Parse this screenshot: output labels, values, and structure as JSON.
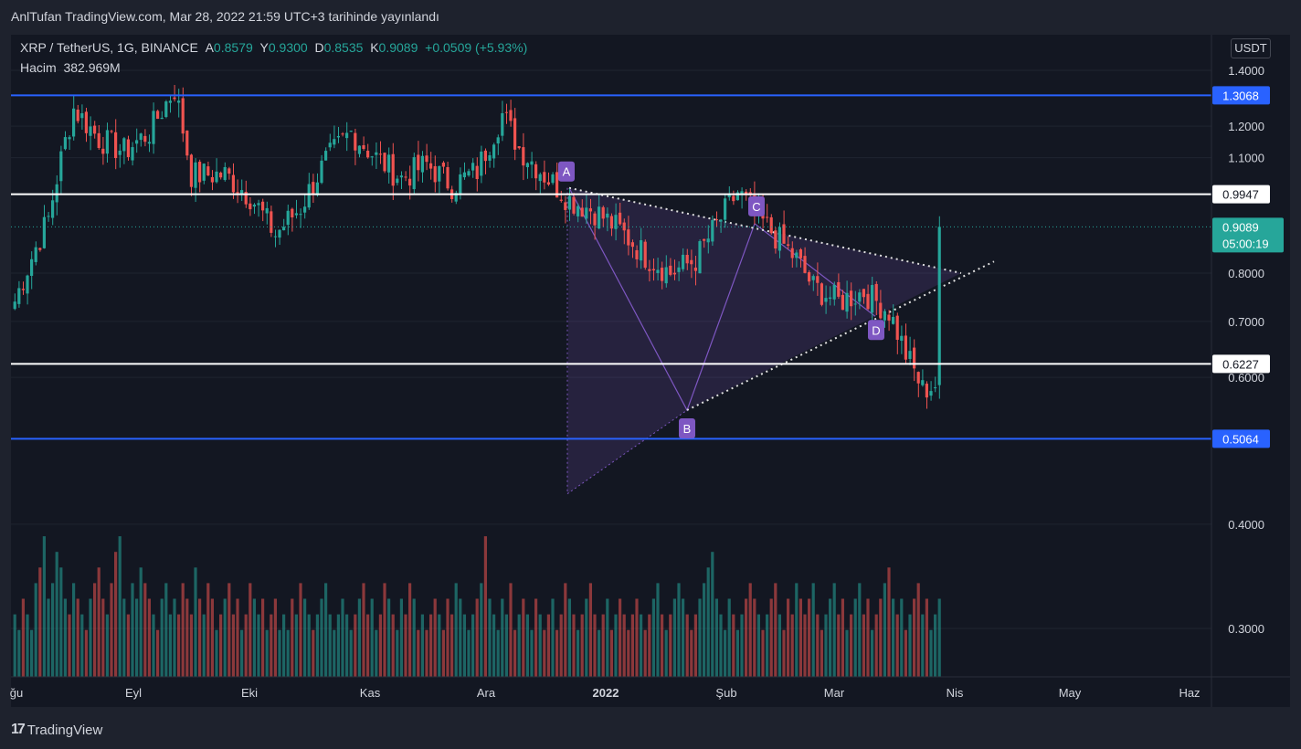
{
  "header": {
    "publish_text": "AnlTufan TradingView.com, Mar 28, 2022 21:59 UTC+3 tarihinde yayınlandı"
  },
  "legend": {
    "symbol": "XRP / TetherUS, 1G, BINANCE",
    "open_label": "A",
    "open": "0.8579",
    "high_label": "Y",
    "high": "0.9300",
    "low_label": "D",
    "low": "0.8535",
    "close_label": "K",
    "close": "0.9089",
    "change": "+0.0509 (+5.93%)",
    "volume_label": "Hacim",
    "volume": "382.969M"
  },
  "currency": "USDT",
  "footer": {
    "brand": "TradingView"
  },
  "colors": {
    "up": "#26a69a",
    "down": "#ef5350",
    "blue_line": "#2962ff",
    "white_line": "#ffffff",
    "pattern": "#7e57c2",
    "bg": "#131722"
  },
  "chart_data": {
    "type": "candlestick",
    "symbol": "XRP / TetherUS",
    "interval": "1G",
    "exchange": "BINANCE",
    "yscale": "log",
    "ylim": [
      0.27,
      1.46
    ],
    "y_ticks": [
      "1.4000",
      "1.2000",
      "1.1000",
      "0.8000",
      "0.7000",
      "0.6000",
      "0.4000",
      "0.3000"
    ],
    "x_ticks": [
      "ğu",
      "Eyl",
      "Eki",
      "Kas",
      "Ara",
      "2022",
      "Şub",
      "Mar",
      "Nis",
      "May",
      "Haz"
    ],
    "horizontal_levels": [
      {
        "value": 1.3068,
        "label": "1.3068",
        "color": "blue"
      },
      {
        "value": 0.9947,
        "label": "0.9947",
        "color": "white"
      },
      {
        "value": 0.6227,
        "label": "0.6227",
        "color": "white"
      },
      {
        "value": 0.5064,
        "label": "0.5064",
        "color": "blue"
      }
    ],
    "last_price": {
      "value": 0.9089,
      "label": "0.9089",
      "countdown": "05:00:19"
    },
    "pattern_points": [
      {
        "label": "A",
        "price": 1.012
      },
      {
        "label": "B",
        "price": 0.545
      },
      {
        "label": "C",
        "price": 0.915
      },
      {
        "label": "D",
        "price": 0.712
      }
    ],
    "close_path": [
      [
        0,
        0.74
      ],
      [
        8,
        0.93
      ],
      [
        14,
        1.26
      ],
      [
        20,
        1.16
      ],
      [
        26,
        1.12
      ],
      [
        32,
        1.18
      ],
      [
        38,
        1.33
      ],
      [
        42,
        1.05
      ],
      [
        50,
        1.05
      ],
      [
        56,
        0.99
      ],
      [
        62,
        0.89
      ],
      [
        68,
        0.96
      ],
      [
        74,
        1.09
      ],
      [
        80,
        1.18
      ],
      [
        86,
        1.1
      ],
      [
        92,
        1.04
      ],
      [
        98,
        1.08
      ],
      [
        104,
        1.02
      ],
      [
        110,
        1.06
      ],
      [
        116,
        1.24
      ],
      [
        120,
        1.13
      ],
      [
        126,
        1.05
      ],
      [
        132,
        0.98
      ],
      [
        138,
        0.95
      ],
      [
        144,
        0.9
      ],
      [
        150,
        0.84
      ],
      [
        156,
        0.8
      ],
      [
        162,
        0.83
      ],
      [
        168,
        0.93
      ],
      [
        172,
        1.0
      ],
      [
        178,
        0.92
      ],
      [
        186,
        0.83
      ],
      [
        190,
        0.77
      ],
      [
        196,
        0.74
      ],
      [
        202,
        0.76
      ],
      [
        208,
        0.72
      ],
      [
        212,
        0.64
      ],
      [
        216,
        0.58
      ],
      [
        220,
        0.59
      ],
      [
        226,
        0.61
      ],
      [
        230,
        0.69
      ],
      [
        234,
        0.9
      ],
      [
        238,
        0.85
      ],
      [
        244,
        0.83
      ],
      [
        250,
        0.77
      ],
      [
        256,
        0.71
      ],
      [
        262,
        0.74
      ],
      [
        268,
        0.76
      ],
      [
        274,
        0.82
      ],
      [
        278,
        0.84
      ],
      [
        282,
        0.87
      ]
    ],
    "volume": [
      4,
      3,
      5,
      4,
      3,
      6,
      7,
      9,
      5,
      6,
      8,
      7,
      5,
      4,
      6,
      5,
      4,
      3,
      5,
      6,
      7,
      5,
      4,
      6,
      8,
      9,
      5,
      4,
      6,
      5,
      7,
      6,
      5,
      4,
      3,
      5,
      6,
      4,
      5,
      4,
      6,
      5,
      4,
      7,
      5,
      4,
      6,
      5,
      3,
      4,
      5,
      6,
      4,
      5,
      3,
      4,
      6,
      5,
      4,
      5,
      3,
      4,
      5,
      3,
      4,
      3,
      5,
      4,
      6,
      5,
      4,
      3,
      4,
      5,
      6,
      4,
      3,
      4,
      5,
      4,
      3,
      4,
      5,
      6,
      4,
      5,
      3,
      4,
      6,
      5,
      4,
      3,
      5,
      4,
      6,
      5,
      3,
      4,
      3,
      4,
      5,
      4,
      3,
      5,
      4,
      6,
      5,
      4,
      3,
      4,
      5,
      6,
      9,
      5,
      4,
      3,
      5,
      4,
      6,
      3,
      4,
      5,
      4,
      3,
      5,
      4,
      3,
      4,
      5,
      3,
      4,
      6,
      5,
      4,
      3,
      4,
      5,
      6,
      4,
      3,
      4,
      5,
      3,
      4,
      5,
      4,
      3,
      4,
      5,
      4,
      3,
      4,
      5,
      6,
      4,
      3,
      4,
      5,
      6,
      5,
      4,
      3,
      4,
      5,
      6,
      7,
      8,
      5,
      4,
      3,
      5,
      4,
      3,
      4,
      5,
      6,
      5,
      4,
      3,
      4,
      5,
      6,
      4,
      3,
      5,
      4,
      6,
      5,
      4,
      5,
      6,
      4,
      3,
      4,
      5,
      6,
      4,
      5,
      3,
      4,
      5,
      6,
      4,
      5,
      3,
      4,
      5,
      6,
      7,
      5,
      4,
      5,
      3,
      4,
      5,
      6,
      4,
      5,
      3,
      4,
      5,
      4,
      6,
      5,
      4,
      3,
      4,
      5,
      6,
      4,
      5,
      3,
      4,
      5,
      4,
      3,
      4,
      5,
      6,
      4,
      5,
      3,
      4,
      5,
      4,
      6,
      5,
      4,
      3,
      5,
      4,
      3,
      4,
      5,
      4,
      5,
      3,
      4,
      5,
      6,
      4,
      5,
      3,
      4,
      5,
      4,
      6,
      5,
      4,
      3,
      5,
      4,
      3,
      4,
      5,
      3
    ]
  }
}
